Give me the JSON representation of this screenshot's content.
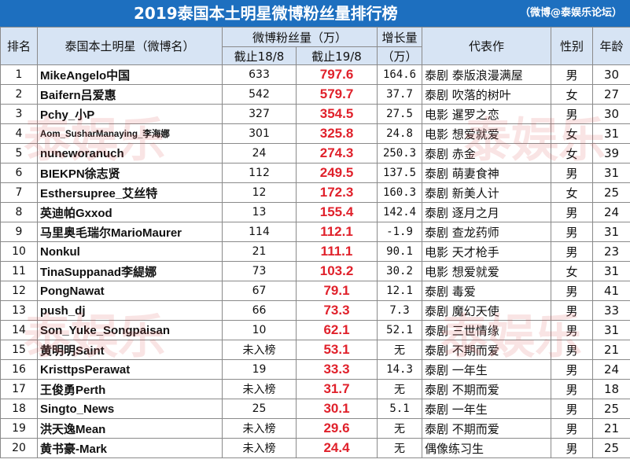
{
  "header": {
    "title": "2019泰国本土明星微博粉丝量排行榜",
    "source": "（微博@泰娱乐论坛）"
  },
  "columns": {
    "rank": "排名",
    "name": "泰国本土明星（微博名）",
    "fans": "微博粉丝量（万）",
    "fans_18": "截止18/8",
    "fans_19": "截止19/8",
    "growth_line1": "增长量",
    "growth_line2": "（万）",
    "work": "代表作",
    "gender": "性别",
    "age": "年龄"
  },
  "rows": [
    {
      "rank": "1",
      "name": "MikeAngelo中国",
      "f18": "633",
      "f19": "797.6",
      "growth": "164.6",
      "work": "泰剧 泰版浪漫满屋",
      "gender": "男",
      "age": "30"
    },
    {
      "rank": "2",
      "name": "Baifern吕爱惠",
      "f18": "542",
      "f19": "579.7",
      "growth": "37.7",
      "work": "泰剧 吹落的树叶",
      "gender": "女",
      "age": "27"
    },
    {
      "rank": "3",
      "name": "Pchy_小P",
      "f18": "327",
      "f19": "354.5",
      "growth": "27.5",
      "work": "电影 暹罗之恋",
      "gender": "男",
      "age": "30"
    },
    {
      "rank": "4",
      "name": "Aom_SusharManaying_李海娜",
      "f18": "301",
      "f19": "325.8",
      "growth": "24.8",
      "work": "电影 想爱就爱",
      "gender": "女",
      "age": "31"
    },
    {
      "rank": "5",
      "name": "nuneworanuch",
      "f18": "24",
      "f19": "274.3",
      "growth": "250.3",
      "work": "泰剧 赤金",
      "gender": "女",
      "age": "39"
    },
    {
      "rank": "6",
      "name": "BIEKPN徐志贤",
      "f18": "112",
      "f19": "249.5",
      "growth": "137.5",
      "work": "泰剧 萌妻食神",
      "gender": "男",
      "age": "31"
    },
    {
      "rank": "7",
      "name": "Esthersupree_艾丝特",
      "f18": "12",
      "f19": "172.3",
      "growth": "160.3",
      "work": "泰剧 新美人计",
      "gender": "女",
      "age": "25"
    },
    {
      "rank": "8",
      "name": "英迪帕Gxxod",
      "f18": "13",
      "f19": "155.4",
      "growth": "142.4",
      "work": "泰剧 逐月之月",
      "gender": "男",
      "age": "24"
    },
    {
      "rank": "9",
      "name": "马里奥毛瑞尔MarioMaurer",
      "f18": "114",
      "f19": "112.1",
      "growth": "-1.9",
      "work": "泰剧 查龙药师",
      "gender": "男",
      "age": "31"
    },
    {
      "rank": "10",
      "name": "Nonkul",
      "f18": "21",
      "f19": "111.1",
      "growth": "90.1",
      "work": "电影 天才枪手",
      "gender": "男",
      "age": "23"
    },
    {
      "rank": "11",
      "name": "TinaSuppanad李緹娜",
      "f18": "73",
      "f19": "103.2",
      "growth": "30.2",
      "work": "电影 想爱就爱",
      "gender": "女",
      "age": "31"
    },
    {
      "rank": "12",
      "name": "PongNawat",
      "f18": "67",
      "f19": "79.1",
      "growth": "12.1",
      "work": "泰剧 毒爱",
      "gender": "男",
      "age": "41"
    },
    {
      "rank": "13",
      "name": "push_dj",
      "f18": "66",
      "f19": "73.3",
      "growth": "7.3",
      "work": "泰剧 魔幻天使",
      "gender": "男",
      "age": "33"
    },
    {
      "rank": "14",
      "name": "Son_Yuke_Songpaisan",
      "f18": "10",
      "f19": "62.1",
      "growth": "52.1",
      "work": "泰剧 三世情缘",
      "gender": "男",
      "age": "31"
    },
    {
      "rank": "15",
      "name": "黄明明Saint",
      "f18": "未入榜",
      "f19": "53.1",
      "growth": "无",
      "work": "泰剧 不期而爱",
      "gender": "男",
      "age": "21"
    },
    {
      "rank": "16",
      "name": "KristtpsPerawat",
      "f18": "19",
      "f19": "33.3",
      "growth": "14.3",
      "work": "泰剧 一年生",
      "gender": "男",
      "age": "24"
    },
    {
      "rank": "17",
      "name": "王俊勇Perth",
      "f18": "未入榜",
      "f19": "31.7",
      "growth": "无",
      "work": "泰剧 不期而爱",
      "gender": "男",
      "age": "18"
    },
    {
      "rank": "18",
      "name": "Singto_News",
      "f18": "25",
      "f19": "30.1",
      "growth": "5.1",
      "work": "泰剧 一年生",
      "gender": "男",
      "age": "25"
    },
    {
      "rank": "19",
      "name": "洪天逸Mean",
      "f18": "未入榜",
      "f19": "29.6",
      "growth": "无",
      "work": "泰剧 不期而爱",
      "gender": "男",
      "age": "21"
    },
    {
      "rank": "20",
      "name": "黄书豪-Mark",
      "f18": "未入榜",
      "f19": "24.4",
      "growth": "无",
      "work": "偶像练习生",
      "gender": "男",
      "age": "25"
    }
  ],
  "watermarks": [
    {
      "text": "泰娱乐"
    },
    {
      "text": "泰娱乐"
    },
    {
      "text": "泰娱乐"
    },
    {
      "text": "泰娱乐"
    }
  ]
}
